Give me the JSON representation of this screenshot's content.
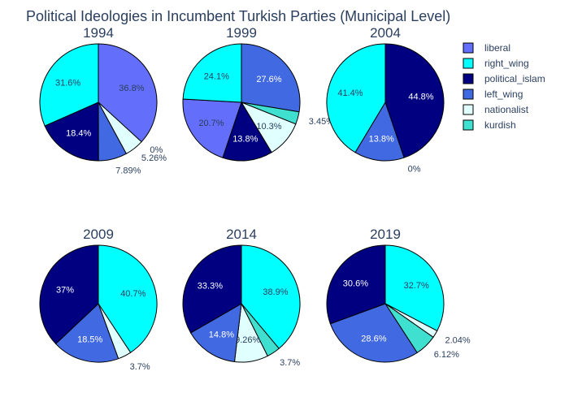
{
  "title": "Political Ideologies in Incumbent Turkish Parties (Municipal Level)",
  "legend": [
    {
      "key": "liberal",
      "label": "liberal",
      "color": "#636EFA"
    },
    {
      "key": "right_wing",
      "label": "right_wing",
      "color": "#00FFFF"
    },
    {
      "key": "political_islam",
      "label": "political_islam",
      "color": "#000080"
    },
    {
      "key": "left_wing",
      "label": "left_wing",
      "color": "#4169E1"
    },
    {
      "key": "nationalist",
      "label": "nationalist",
      "color": "#E0FFFF"
    },
    {
      "key": "kurdish",
      "label": "kurdish",
      "color": "#40E0D0"
    }
  ],
  "chart_data": [
    {
      "type": "pie",
      "title": "1994",
      "slices": [
        {
          "category": "liberal",
          "value": 36.8,
          "label": "36.8%"
        },
        {
          "category": "nationalist",
          "value": 0,
          "label": "0%"
        },
        {
          "category": "nationalist",
          "value": 5.26,
          "label": "5.26%"
        },
        {
          "category": "left_wing",
          "value": 7.89,
          "label": "7.89%"
        },
        {
          "category": "political_islam",
          "value": 18.4,
          "label": "18.4%"
        },
        {
          "category": "right_wing",
          "value": 31.6,
          "label": "31.6%"
        }
      ]
    },
    {
      "type": "pie",
      "title": "1999",
      "slices": [
        {
          "category": "left_wing",
          "value": 27.6,
          "label": "27.6%"
        },
        {
          "category": "kurdish",
          "value": 3.45,
          "label": "3.45%"
        },
        {
          "category": "nationalist",
          "value": 10.3,
          "label": "10.3%"
        },
        {
          "category": "political_islam",
          "value": 13.8,
          "label": "13.8%"
        },
        {
          "category": "liberal",
          "value": 20.7,
          "label": "20.7%"
        },
        {
          "category": "right_wing",
          "value": 24.1,
          "label": "24.1%"
        }
      ]
    },
    {
      "type": "pie",
      "title": "2004",
      "slices": [
        {
          "category": "political_islam",
          "value": 44.8,
          "label": "44.8%"
        },
        {
          "category": "nationalist",
          "value": 0,
          "label": "0%"
        },
        {
          "category": "left_wing",
          "value": 13.8,
          "label": "13.8%"
        },
        {
          "category": "right_wing",
          "value": 41.4,
          "label": "41.4%"
        }
      ]
    },
    {
      "type": "pie",
      "title": "2009",
      "slices": [
        {
          "category": "right_wing",
          "value": 40.7,
          "label": "40.7%"
        },
        {
          "category": "nationalist",
          "value": 3.7,
          "label": "3.7%"
        },
        {
          "category": "left_wing",
          "value": 18.5,
          "label": "18.5%"
        },
        {
          "category": "political_islam",
          "value": 37,
          "label": "37%"
        }
      ]
    },
    {
      "type": "pie",
      "title": "2014",
      "slices": [
        {
          "category": "right_wing",
          "value": 38.9,
          "label": "38.9%"
        },
        {
          "category": "kurdish",
          "value": 3.7,
          "label": "3.7%"
        },
        {
          "category": "nationalist",
          "value": 9.26,
          "label": "9.26%"
        },
        {
          "category": "left_wing",
          "value": 14.8,
          "label": "14.8%"
        },
        {
          "category": "political_islam",
          "value": 33.3,
          "label": "33.3%"
        }
      ]
    },
    {
      "type": "pie",
      "title": "2019",
      "slices": [
        {
          "category": "right_wing",
          "value": 32.7,
          "label": "32.7%"
        },
        {
          "category": "nationalist",
          "value": 2.04,
          "label": "2.04%"
        },
        {
          "category": "kurdish",
          "value": 6.12,
          "label": "6.12%"
        },
        {
          "category": "left_wing",
          "value": 28.6,
          "label": "28.6%"
        },
        {
          "category": "political_islam",
          "value": 30.6,
          "label": "30.6%"
        }
      ]
    }
  ]
}
